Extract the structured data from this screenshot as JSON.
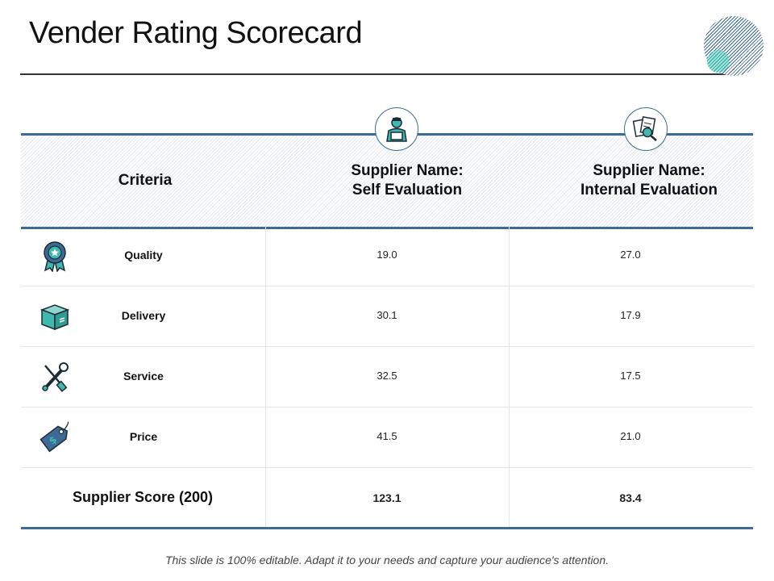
{
  "slide": {
    "title": "Vender Rating Scorecard",
    "footer": "This slide is 100% editable. Adapt it to your needs and capture your audience's attention."
  },
  "table": {
    "header": {
      "criteria": "Criteria",
      "col1_line1": "Supplier Name:",
      "col1_line2": "Self Evaluation",
      "col2_line1": "Supplier Name:",
      "col2_line2": "Internal Evaluation"
    },
    "rows": [
      {
        "label": "Quality",
        "icon": "award-ribbon-icon",
        "self": "19.0",
        "internal": "27.0"
      },
      {
        "label": "Delivery",
        "icon": "package-box-icon",
        "self": "30.1",
        "internal": "17.9"
      },
      {
        "label": "Service",
        "icon": "wrench-screwdriver-icon",
        "self": "32.5",
        "internal": "17.5"
      },
      {
        "label": "Price",
        "icon": "price-tag-icon",
        "self": "41.5",
        "internal": "21.0"
      }
    ],
    "total": {
      "label": "Supplier Score (200)",
      "self": "123.1",
      "internal": "83.4"
    }
  },
  "colors": {
    "accent": "#3d6b95",
    "teal": "#3fb8ae"
  }
}
